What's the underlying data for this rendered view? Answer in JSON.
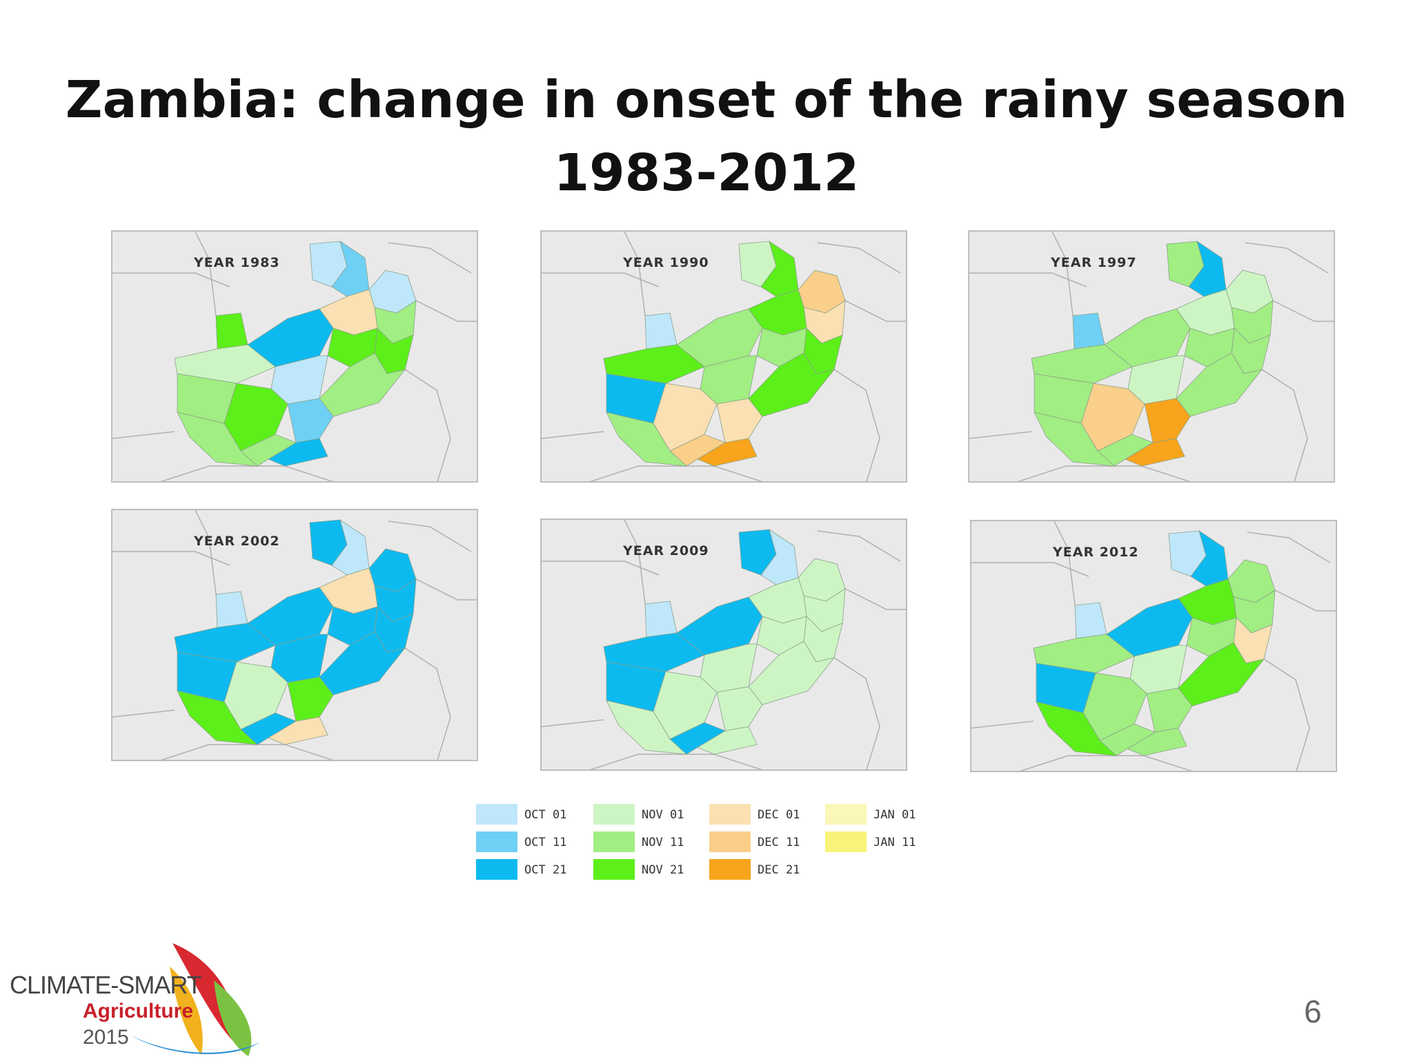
{
  "slide": {
    "title_line1": "Zambia: change in onset of the rainy season",
    "title_line2": "1983-2012",
    "page_number": "6"
  },
  "maps": [
    {
      "label": "YEAR 1983",
      "regions": [
        "OCT 01",
        "OCT 11",
        "OCT 01",
        "NOV 11",
        "NOV 21",
        "DEC 01",
        "NOV 21",
        "NOV 11",
        "NOV 21",
        "OCT 21",
        "OCT 01",
        "NOV 01",
        "NOV 11",
        "NOV 21",
        "OCT 11",
        "OCT 21",
        "NOV 11",
        "NOV 11"
      ]
    },
    {
      "label": "YEAR 1990",
      "regions": [
        "NOV 01",
        "NOV 21",
        "DEC 11",
        "DEC 01",
        "NOV 21",
        "NOV 21",
        "NOV 11",
        "NOV 21",
        "OCT 01",
        "NOV 11",
        "NOV 11",
        "NOV 21",
        "OCT 21",
        "DEC 01",
        "DEC 01",
        "DEC 21",
        "DEC 11",
        "NOV 11"
      ]
    },
    {
      "label": "YEAR 1997",
      "regions": [
        "NOV 11",
        "OCT 21",
        "NOV 01",
        "NOV 11",
        "NOV 11",
        "NOV 01",
        "NOV 11",
        "NOV 11",
        "OCT 11",
        "NOV 11",
        "NOV 01",
        "NOV 11",
        "NOV 11",
        "DEC 11",
        "DEC 21",
        "DEC 21",
        "NOV 11",
        "NOV 11"
      ]
    },
    {
      "label": "YEAR 2002",
      "regions": [
        "OCT 21",
        "OCT 01",
        "OCT 21",
        "OCT 21",
        "OCT 21",
        "DEC 01",
        "OCT 21",
        "OCT 21",
        "OCT 01",
        "OCT 21",
        "OCT 21",
        "OCT 21",
        "OCT 21",
        "NOV 01",
        "NOV 21",
        "DEC 01",
        "OCT 21",
        "NOV 21"
      ]
    },
    {
      "label": "YEAR 2009",
      "regions": [
        "OCT 21",
        "OCT 01",
        "NOV 01",
        "NOV 01",
        "NOV 01",
        "NOV 01",
        "NOV 01",
        "NOV 01",
        "OCT 01",
        "OCT 21",
        "NOV 01",
        "OCT 21",
        "OCT 21",
        "NOV 01",
        "NOV 01",
        "NOV 01",
        "OCT 21",
        "NOV 01"
      ]
    },
    {
      "label": "YEAR 2012",
      "regions": [
        "OCT 01",
        "OCT 21",
        "NOV 11",
        "NOV 11",
        "DEC 01",
        "NOV 21",
        "NOV 11",
        "NOV 21",
        "OCT 01",
        "OCT 21",
        "NOV 01",
        "NOV 11",
        "OCT 21",
        "NOV 11",
        "NOV 11",
        "NOV 11",
        "NOV 11",
        "NOV 21"
      ]
    }
  ],
  "legend": [
    {
      "label": "OCT 01",
      "color": "#bfe7fb"
    },
    {
      "label": "OCT 11",
      "color": "#6fd0f5"
    },
    {
      "label": "OCT 21",
      "color": "#0dbaf0"
    },
    {
      "label": "NOV 01",
      "color": "#cdf5c4"
    },
    {
      "label": "NOV 11",
      "color": "#a1ee83"
    },
    {
      "label": "NOV 21",
      "color": "#5def1a"
    },
    {
      "label": "DEC 01",
      "color": "#fae0b2"
    },
    {
      "label": "DEC 11",
      "color": "#f9cf8a"
    },
    {
      "label": "DEC 21",
      "color": "#f8a41c"
    },
    {
      "label": "JAN 01",
      "color": "#fbf7b8"
    },
    {
      "label": "JAN 11",
      "color": "#f8f47a"
    }
  ],
  "logo": {
    "line1": "CLIMATE-SMART",
    "line2": "Agriculture",
    "line3": "2015"
  }
}
